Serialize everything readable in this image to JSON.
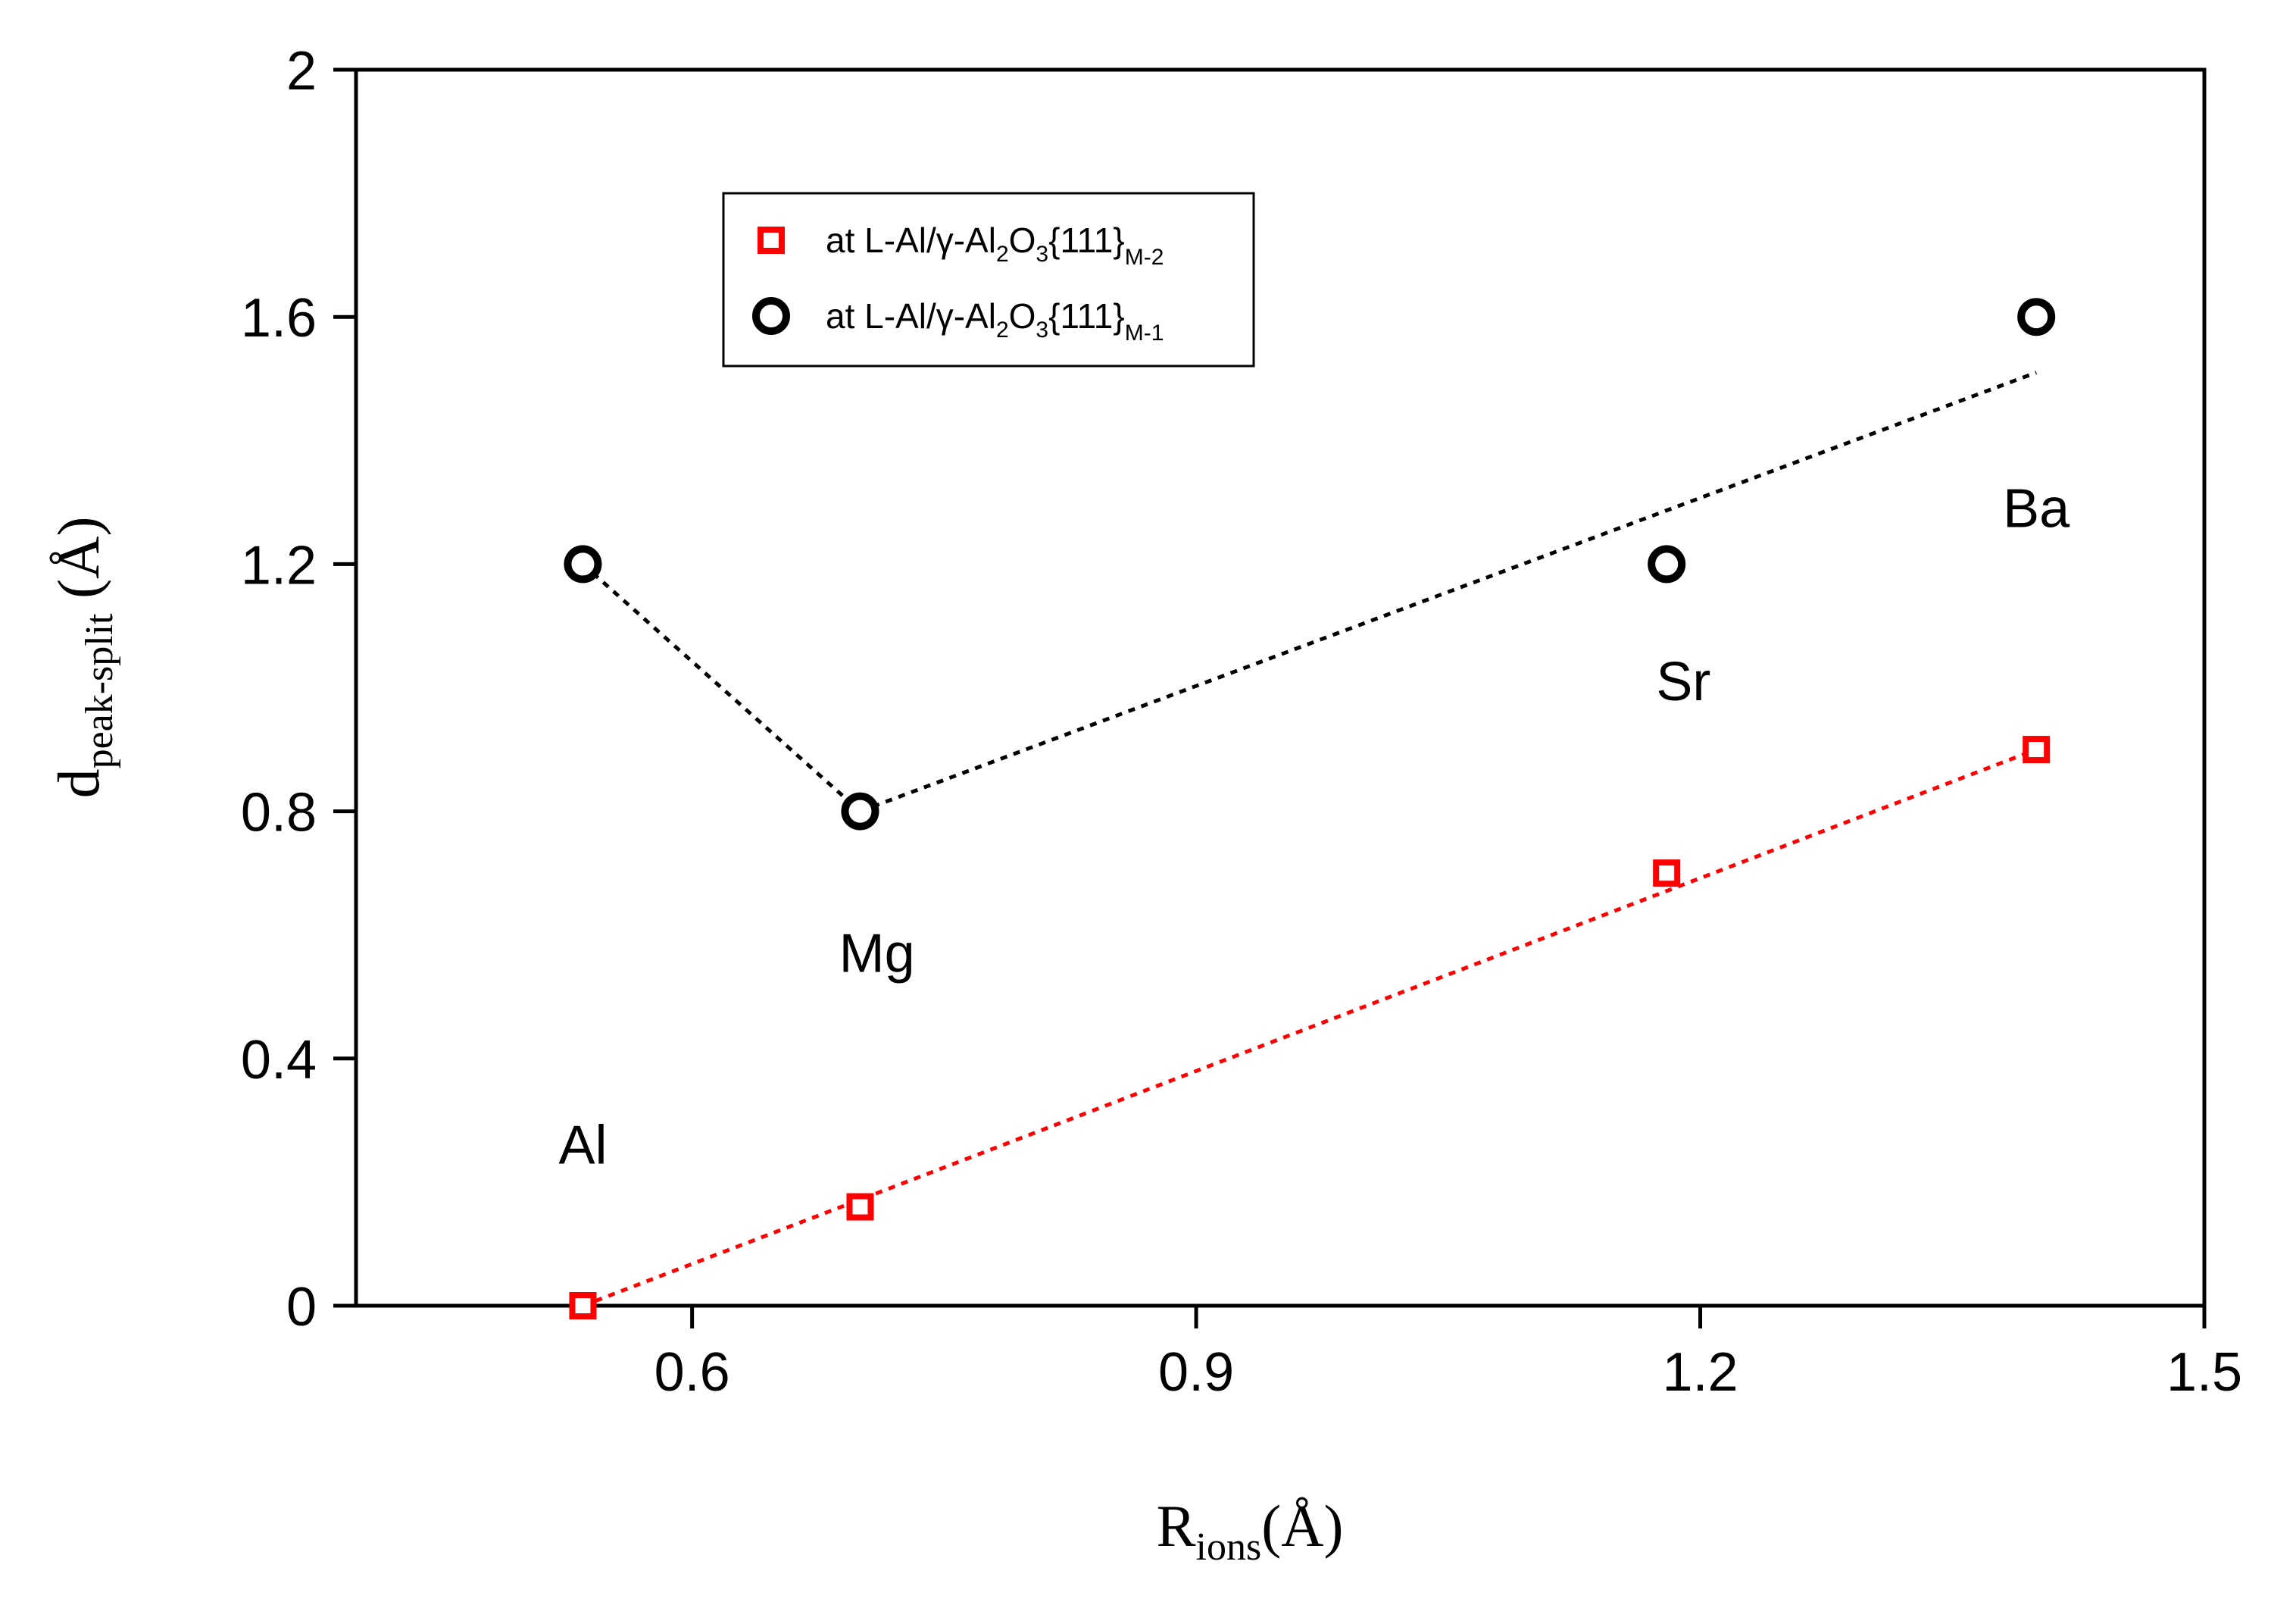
{
  "chart_data": {
    "type": "scatter",
    "x_axis": {
      "label_main": "R",
      "label_sub": "ions",
      "label_unit": "(Å)",
      "ticks": [
        0.6,
        0.9,
        1.2,
        1.5
      ],
      "tick_labels": [
        "0.6",
        "0.9",
        "1.2",
        "1.5"
      ],
      "range": [
        0.4,
        1.5
      ]
    },
    "y_axis": {
      "label_main": "d",
      "label_sub": "peak-split",
      "label_unit": " (Å)",
      "ticks": [
        0,
        0.4,
        0.8,
        1.2,
        1.6,
        2
      ],
      "tick_labels": [
        "0",
        "0.4",
        "0.8",
        "1.2",
        "1.6",
        "2"
      ],
      "range": [
        0,
        2
      ]
    },
    "grid": false,
    "legend_position": "top-left",
    "series": [
      {
        "key": "m2",
        "legend": {
          "prefix": "at L-Al/γ-Al",
          "sub1": "2",
          "mid": "O",
          "sub2": "3",
          "suffix": "{111}",
          "tail": "M-2"
        },
        "marker": "square",
        "color": "#ff0000",
        "x": [
          0.535,
          0.7,
          1.18,
          1.4
        ],
        "y": [
          0.0,
          0.16,
          0.7,
          0.9
        ],
        "fit_line": {
          "x": [
            0.535,
            1.4
          ],
          "y": [
            0.0,
            0.9
          ]
        }
      },
      {
        "key": "m1",
        "legend": {
          "prefix": "at L-Al/γ-Al",
          "sub1": "2",
          "mid": "O",
          "sub2": "3",
          "suffix": "{111}",
          "tail": "M-1"
        },
        "marker": "circle",
        "color": "#000000",
        "x": [
          0.535,
          0.7,
          1.18,
          1.4
        ],
        "y": [
          1.2,
          0.8,
          1.2,
          1.6
        ],
        "fit_segments": [
          {
            "x": [
              0.535,
              0.7
            ],
            "y": [
              1.2,
              0.8
            ]
          },
          {
            "x": [
              0.7,
              1.4
            ],
            "y": [
              0.8,
              1.51
            ]
          }
        ]
      }
    ],
    "annotations": [
      {
        "text": "Al",
        "x": 0.535,
        "y": 0.23
      },
      {
        "text": "Mg",
        "x": 0.71,
        "y": 0.54
      },
      {
        "text": "Sr",
        "x": 1.19,
        "y": 0.98
      },
      {
        "text": "Ba",
        "x": 1.4,
        "y": 1.26
      }
    ]
  }
}
